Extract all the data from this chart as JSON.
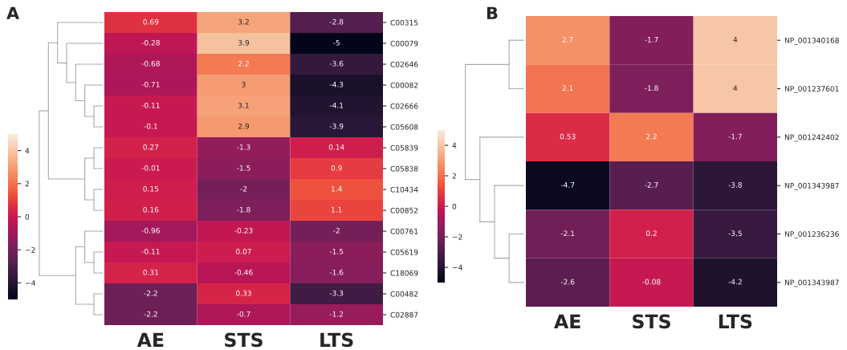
{
  "chart_data": [
    {
      "type": "heatmap",
      "title": "A",
      "categories": [
        "AE",
        "STS",
        "LTS"
      ],
      "y_categories": [
        "C00315",
        "C00079",
        "C02646",
        "C00082",
        "C02666",
        "C05608",
        "C05839",
        "C05838",
        "C10434",
        "C00852",
        "C00761",
        "C05619",
        "C18069",
        "C00482",
        "C02887"
      ],
      "cells": [
        [
          0.69,
          3.2,
          -2.8
        ],
        [
          -0.28,
          3.9,
          -5
        ],
        [
          -0.68,
          2.2,
          -3.6
        ],
        [
          -0.71,
          3,
          -4.3
        ],
        [
          -0.11,
          3.1,
          -4.1
        ],
        [
          -0.1,
          2.9,
          -3.9
        ],
        [
          0.27,
          -1.3,
          0.14
        ],
        [
          -0.01,
          -1.5,
          0.9
        ],
        [
          0.15,
          -2,
          1.4
        ],
        [
          0.16,
          -1.8,
          1.1
        ],
        [
          -0.96,
          -0.23,
          -2
        ],
        [
          -0.11,
          0.07,
          -1.5
        ],
        [
          0.31,
          -0.46,
          -1.6
        ],
        [
          -2.2,
          0.33,
          -3.3
        ],
        [
          -2.2,
          -0.7,
          -1.2
        ]
      ],
      "clim": [
        -5,
        5
      ],
      "cticks": [
        -4,
        -2,
        0,
        2,
        4
      ],
      "data_labels": true
    },
    {
      "type": "heatmap",
      "title": "B",
      "categories": [
        "AE",
        "STS",
        "LTS"
      ],
      "y_categories": [
        "NP_001340168",
        "NP_001237601",
        "NP_001242402",
        "NP_001343987",
        "NP_001236236",
        "NP_001343987"
      ],
      "cells": [
        [
          2.7,
          -1.7,
          4
        ],
        [
          2.1,
          -1.8,
          4
        ],
        [
          0.53,
          2.2,
          -1.7
        ],
        [
          -4.7,
          -2.7,
          -3.8
        ],
        [
          -2.1,
          0.2,
          -3.5
        ],
        [
          -2.6,
          -0.08,
          -4.2
        ]
      ],
      "clim": [
        -5,
        5
      ],
      "cticks": [
        -4,
        -2,
        0,
        2,
        4
      ],
      "data_labels": true
    }
  ]
}
